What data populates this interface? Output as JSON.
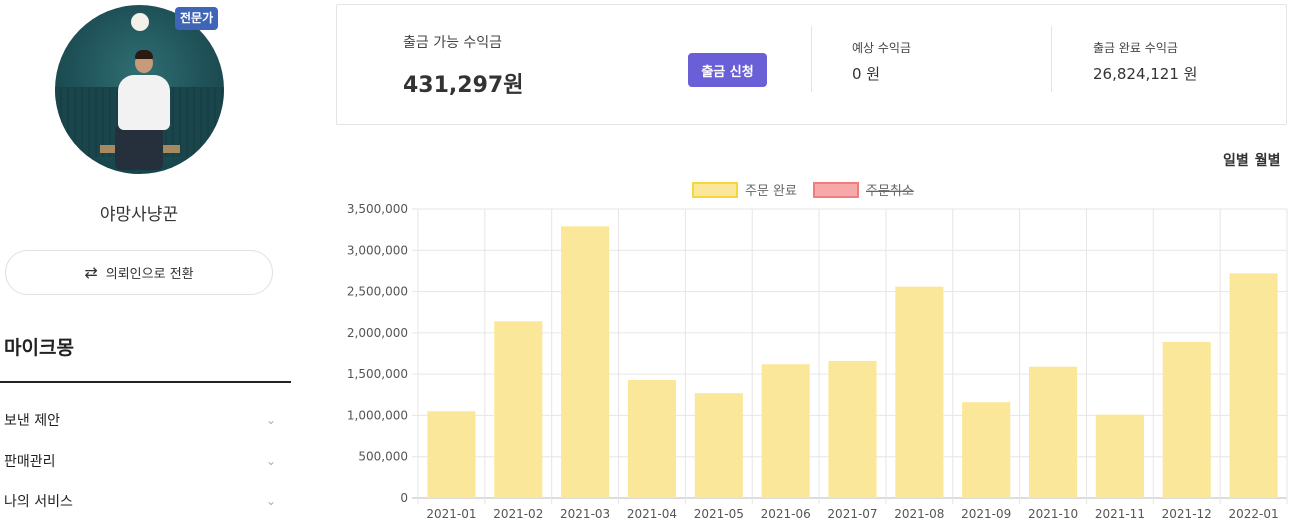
{
  "profile": {
    "badge": "전문가",
    "username": "야망사냥꾼",
    "switch_label": "의뢰인으로 전환",
    "switch_icon": "swap-arrows-icon"
  },
  "menu": {
    "title": "마이크몽",
    "items": [
      {
        "label": "보낸 제안"
      },
      {
        "label": "판매관리"
      },
      {
        "label": "나의 서비스"
      }
    ]
  },
  "earnings": {
    "available_label": "출금 가능 수익금",
    "available_value": "431,297원",
    "withdraw_button": "출금 신청",
    "expected_label": "예상 수익금",
    "expected_value": "0 원",
    "completed_label": "출금 완료 수익금",
    "completed_value": "26,824,121 원"
  },
  "period": {
    "daily": "일별",
    "monthly": "월별"
  },
  "colors": {
    "accent": "#6a5fd6",
    "badge": "#3e65b8",
    "bar_fill": "#fbe79a",
    "bar_border": "#f5d640",
    "cancel_fill": "#f7a9a9",
    "cancel_border": "#ef7f7f"
  },
  "chart_data": {
    "type": "bar",
    "categories": [
      "2021-01",
      "2021-02",
      "2021-03",
      "2021-04",
      "2021-05",
      "2021-06",
      "2021-07",
      "2021-08",
      "2021-09",
      "2021-10",
      "2021-11",
      "2021-12",
      "2022-01"
    ],
    "series": [
      {
        "name": "주문 완료",
        "values": [
          1050000,
          2140000,
          3290000,
          1430000,
          1270000,
          1620000,
          1660000,
          2560000,
          1160000,
          1590000,
          1010000,
          1890000,
          2720000
        ]
      },
      {
        "name": "주문취소",
        "values": [
          0,
          0,
          0,
          0,
          0,
          0,
          0,
          0,
          0,
          0,
          0,
          0,
          0
        ],
        "hidden": true
      }
    ],
    "yticks": [
      "0",
      "500,000",
      "1,000,000",
      "1,500,000",
      "2,000,000",
      "2,500,000",
      "3,000,000",
      "3,500,000"
    ],
    "ylim": [
      0,
      3500000
    ],
    "grid": true,
    "legend": "top-center"
  }
}
